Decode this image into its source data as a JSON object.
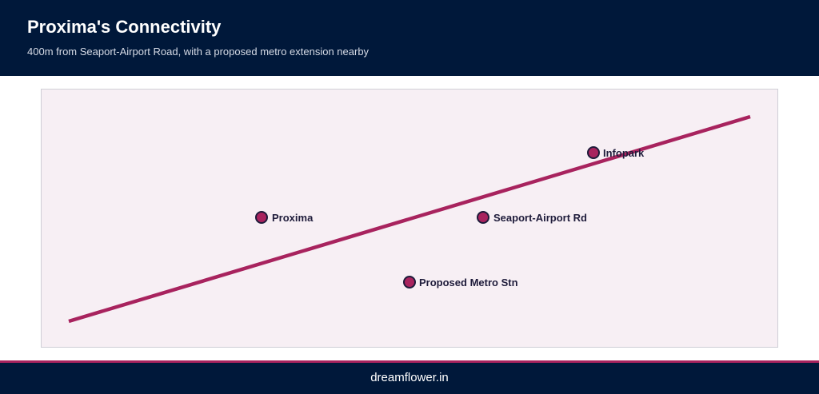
{
  "header": {
    "title": "Proxima's Connectivity",
    "subtitle": "400m from Seaport-Airport Road, with a proposed metro extension nearby"
  },
  "map": {
    "markers": [
      {
        "id": "proxima",
        "label": "Proxima"
      },
      {
        "id": "seaport",
        "label": "Seaport-Airport Rd"
      },
      {
        "id": "infopark",
        "label": "Infopark"
      },
      {
        "id": "metro",
        "label": "Proposed Metro Stn"
      }
    ]
  },
  "footer": {
    "site": "dreamflower.in"
  },
  "colors": {
    "header_bg": "#00183a",
    "accent": "#a8235e",
    "map_bg": "#f7eff4",
    "marker_stroke": "#1e1b3a"
  }
}
